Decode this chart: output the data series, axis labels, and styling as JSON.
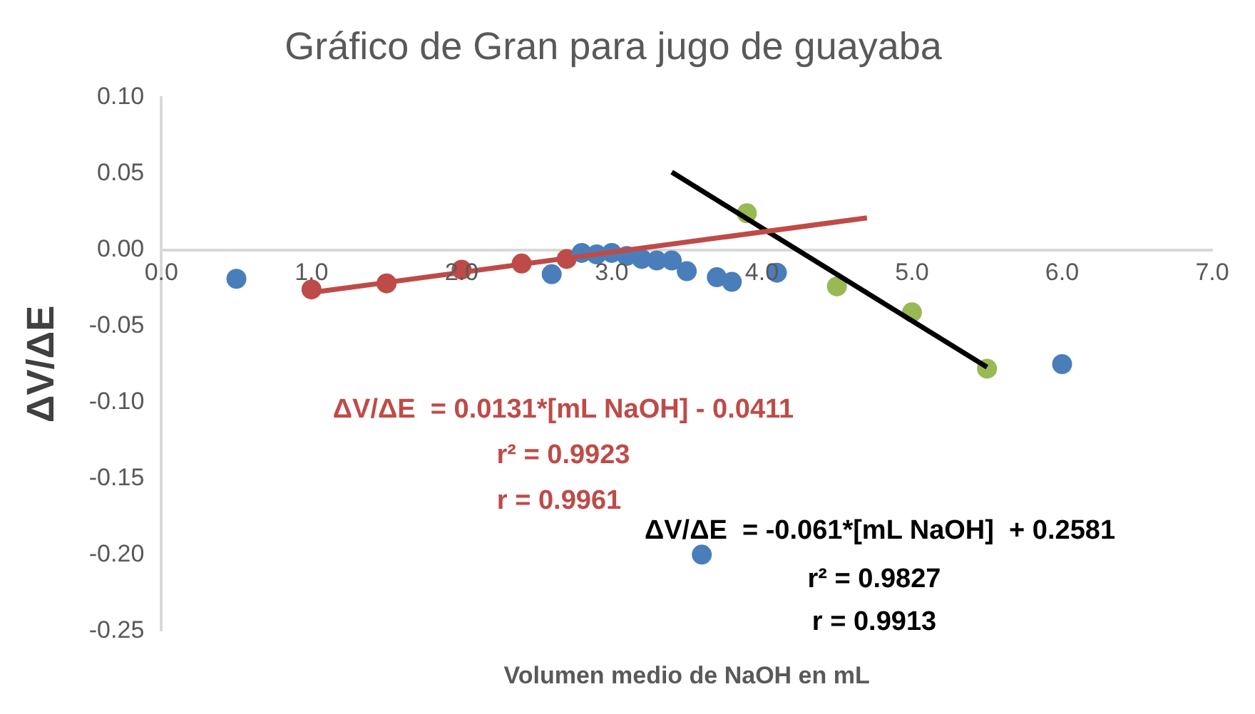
{
  "chart_data": {
    "type": "scatter",
    "title": "Gráfico de Gran para jugo de guayaba",
    "xlabel": "Volumen medio de NaOH en mL",
    "ylabel": "ΔV/ΔE",
    "xlim": [
      0,
      7
    ],
    "ylim": [
      -0.25,
      0.1
    ],
    "xticks": [
      {
        "value": 0,
        "label": "0.0"
      },
      {
        "value": 1,
        "label": "1.0"
      },
      {
        "value": 2,
        "label": "2.0"
      },
      {
        "value": 3,
        "label": "3.0"
      },
      {
        "value": 4,
        "label": "4.0"
      },
      {
        "value": 5,
        "label": "5.0"
      },
      {
        "value": 6,
        "label": "6.0"
      },
      {
        "value": 7,
        "label": "7.0"
      }
    ],
    "yticks": [
      {
        "value": 0.1,
        "label": "0.10"
      },
      {
        "value": 0.05,
        "label": "0.05"
      },
      {
        "value": 0,
        "label": "0.00"
      },
      {
        "value": -0.05,
        "label": "-0.05"
      },
      {
        "value": -0.1,
        "label": "-0.10"
      },
      {
        "value": -0.15,
        "label": "-0.15"
      },
      {
        "value": -0.2,
        "label": "-0.20"
      },
      {
        "value": -0.25,
        "label": "-0.25"
      }
    ],
    "grid": false,
    "legend": false,
    "marker": "circle",
    "series": [
      {
        "color": "#4a7ebb",
        "x": [
          0.5,
          2.6,
          2.8,
          2.9,
          3.0,
          3.1,
          3.2,
          3.3,
          3.4,
          3.5,
          3.6,
          3.7,
          3.8,
          4.1,
          6.0
        ],
        "values": [
          -0.019,
          -0.016,
          -0.002,
          -0.003,
          -0.002,
          -0.004,
          -0.006,
          -0.007,
          -0.007,
          -0.014,
          -0.2,
          -0.018,
          -0.021,
          -0.015,
          -0.075
        ]
      },
      {
        "color": "#be4b48",
        "x": [
          1.0,
          1.5,
          2.0,
          2.4,
          2.7
        ],
        "values": [
          -0.026,
          -0.022,
          -0.013,
          -0.009,
          -0.006
        ]
      },
      {
        "color": "#98b954",
        "x": [
          3.9,
          4.5,
          5.0,
          5.5
        ],
        "values": [
          0.024,
          -0.024,
          -0.041,
          -0.078
        ]
      },
      {
        "type": "line",
        "marker": "none",
        "color": "#be4b48",
        "x": [
          1.0,
          4.7
        ],
        "values": [
          -0.028,
          0.021
        ]
      },
      {
        "type": "line",
        "marker": "none",
        "color": "#000000",
        "x": [
          3.4,
          5.5
        ],
        "values": [
          0.051,
          -0.077
        ]
      }
    ],
    "annotations": [
      "ΔV/ΔE  = 0.0131*[mL NaOH] - 0.0411",
      "r² = 0.9923",
      "r = 0.9961",
      "ΔV/ΔE  = -0.061*[mL NaOH]  + 0.2581",
      "r² = 0.9827",
      "r = 0.9913"
    ]
  }
}
